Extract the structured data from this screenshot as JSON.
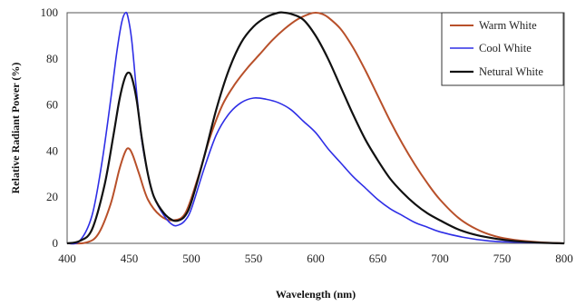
{
  "chart_data": {
    "type": "line",
    "xlabel": "Wavelength (nm)",
    "ylabel": "Relative Radiant Power (%)",
    "xlim": [
      400,
      800
    ],
    "ylim": [
      0,
      100
    ],
    "xticks": [
      400,
      450,
      500,
      550,
      600,
      650,
      700,
      750,
      800
    ],
    "yticks": [
      0,
      20,
      40,
      60,
      80,
      100
    ],
    "grid": false,
    "legend_position": "top-right",
    "series": [
      {
        "name": "Warm White",
        "color": "#b8502a",
        "x": [
          400,
          415,
          425,
          435,
          442,
          447,
          450,
          453,
          458,
          465,
          475,
          485,
          495,
          505,
          515,
          525,
          535,
          545,
          555,
          565,
          575,
          585,
          595,
          600,
          605,
          610,
          620,
          630,
          640,
          650,
          660,
          670,
          680,
          690,
          700,
          715,
          730,
          745,
          760,
          780,
          800
        ],
        "y": [
          0,
          0.3,
          4,
          17,
          32,
          40,
          41,
          38,
          30,
          19,
          12,
          10,
          13,
          28,
          46,
          60,
          69,
          76,
          82,
          88,
          93,
          97,
          99.5,
          100,
          99.5,
          98,
          93,
          85,
          75,
          64,
          53,
          43,
          34,
          26,
          19,
          11,
          6,
          3,
          1.5,
          0.5,
          0
        ]
      },
      {
        "name": "Cool White",
        "color": "#2e2ee6",
        "x": [
          400,
          410,
          420,
          428,
          435,
          440,
          444,
          447,
          449,
          452,
          456,
          460,
          465,
          470,
          478,
          485,
          490,
          495,
          500,
          510,
          520,
          530,
          540,
          550,
          560,
          570,
          580,
          590,
          600,
          610,
          620,
          630,
          640,
          650,
          660,
          670,
          680,
          690,
          700,
          720,
          740,
          760,
          780,
          800
        ],
        "y": [
          0,
          1,
          12,
          35,
          62,
          83,
          96,
          100,
          98,
          88,
          65,
          45,
          30,
          20,
          12,
          8,
          8,
          10,
          15,
          32,
          47,
          56,
          61,
          63,
          62.5,
          61,
          58,
          53,
          48,
          41,
          35,
          29,
          24,
          19,
          15,
          12,
          9,
          7,
          5,
          2.5,
          1,
          0.5,
          0.2,
          0
        ]
      },
      {
        "name": "Netural White",
        "color": "#111111",
        "x": [
          400,
          410,
          420,
          430,
          437,
          442,
          446,
          449,
          452,
          456,
          460,
          465,
          470,
          478,
          485,
          490,
          495,
          500,
          510,
          520,
          530,
          540,
          550,
          560,
          570,
          575,
          580,
          590,
          600,
          610,
          620,
          630,
          640,
          650,
          660,
          670,
          680,
          690,
          700,
          715,
          730,
          745,
          760,
          780,
          800
        ],
        "y": [
          0,
          1,
          6,
          25,
          46,
          62,
          71,
          74,
          72,
          62,
          46,
          30,
          20,
          13,
          10,
          10,
          12,
          18,
          37,
          58,
          75,
          87,
          94,
          98,
          100,
          100,
          99.5,
          97,
          90,
          80,
          68,
          56,
          45,
          36,
          28,
          22,
          17,
          13,
          10,
          6,
          3.5,
          2,
          1,
          0.3,
          0
        ]
      }
    ]
  }
}
